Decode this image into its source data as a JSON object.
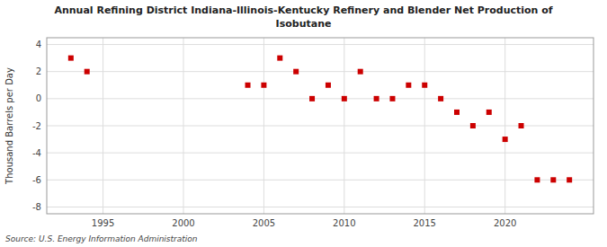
{
  "chart_data": {
    "type": "scatter",
    "title": "Annual Refining District Indiana-Illinois-Kentucky Refinery and Blender Net Production of",
    "subtitle": "Isobutane",
    "y_label": "Thousand Barrels per Day",
    "annotations": [
      "Source: U.S. Energy Information Administration"
    ],
    "x": [
      1993,
      1994,
      2004,
      2005,
      2006,
      2007,
      2008,
      2009,
      2010,
      2011,
      2012,
      2013,
      2014,
      2015,
      2016,
      2017,
      2018,
      2019,
      2020,
      2021,
      2022,
      2023,
      2024
    ],
    "values": [
      3,
      2,
      1,
      1,
      3,
      2,
      0,
      1,
      0,
      2,
      0,
      0,
      1,
      1,
      0,
      -1,
      -2,
      -1,
      -3,
      -2,
      -6,
      -6,
      -6
    ],
    "color": "#cc0000",
    "marker": "square",
    "xlim": [
      1991.5,
      2025.5
    ],
    "ylim": [
      -8.5,
      4.5
    ],
    "xticks": [
      1995,
      2000,
      2005,
      2010,
      2015,
      2020
    ],
    "yticks": [
      -8,
      -6,
      -4,
      -2,
      0,
      2,
      4
    ],
    "grid": true
  }
}
